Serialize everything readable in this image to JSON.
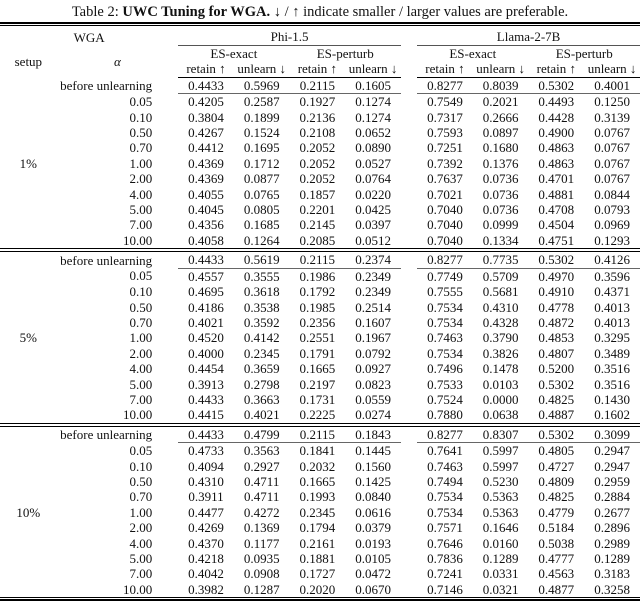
{
  "caption": {
    "prefix": "Table 2: ",
    "bold": "UWC Tuning for WGA.",
    "suffix": " ↓ / ↑ indicate smaller / larger values are preferable."
  },
  "header": {
    "wga": "WGA",
    "setup": "setup",
    "alpha": "α",
    "model_left": "Phi-1.5",
    "model_right": "Llama-2-7B",
    "es_exact": "ES-exact",
    "es_perturb": "ES-perturb",
    "retain": "retain ↑",
    "unlearn": "unlearn ↓"
  },
  "table": {
    "before_label": "before unlearning",
    "setup_row_label": "1.00",
    "blocks": [
      {
        "setup": "1%",
        "rows": [
          {
            "label": "before unlearning",
            "values": [
              "0.4433",
              "0.5969",
              "0.2115",
              "0.1605",
              "0.8277",
              "0.8039",
              "0.5302",
              "0.4001"
            ]
          },
          {
            "label": "0.05",
            "values": [
              "0.4205",
              "0.2587",
              "0.1927",
              "0.1274",
              "0.7549",
              "0.2021",
              "0.4493",
              "0.1250"
            ]
          },
          {
            "label": "0.10",
            "values": [
              "0.3804",
              "0.1899",
              "0.2136",
              "0.1274",
              "0.7317",
              "0.2666",
              "0.4428",
              "0.3139"
            ]
          },
          {
            "label": "0.50",
            "values": [
              "0.4267",
              "0.1524",
              "0.2108",
              "0.0652",
              "0.7593",
              "0.0897",
              "0.4900",
              "0.0767"
            ]
          },
          {
            "label": "0.70",
            "values": [
              "0.4412",
              "0.1695",
              "0.2052",
              "0.0890",
              "0.7251",
              "0.1680",
              "0.4863",
              "0.0767"
            ]
          },
          {
            "label": "1.00",
            "values": [
              "0.4369",
              "0.1712",
              "0.2052",
              "0.0527",
              "0.7392",
              "0.1376",
              "0.4863",
              "0.0767"
            ]
          },
          {
            "label": "2.00",
            "values": [
              "0.4369",
              "0.0877",
              "0.2052",
              "0.0764",
              "0.7637",
              "0.0736",
              "0.4701",
              "0.0767"
            ]
          },
          {
            "label": "4.00",
            "values": [
              "0.4055",
              "0.0765",
              "0.1857",
              "0.0220",
              "0.7021",
              "0.0736",
              "0.4881",
              "0.0844"
            ]
          },
          {
            "label": "5.00",
            "values": [
              "0.4045",
              "0.0805",
              "0.2201",
              "0.0425",
              "0.7040",
              "0.0736",
              "0.4708",
              "0.0793"
            ]
          },
          {
            "label": "7.00",
            "values": [
              "0.4356",
              "0.1685",
              "0.2145",
              "0.0397",
              "0.7040",
              "0.0999",
              "0.4504",
              "0.0969"
            ]
          },
          {
            "label": "10.00",
            "values": [
              "0.4058",
              "0.1264",
              "0.2085",
              "0.0512",
              "0.7040",
              "0.1334",
              "0.4751",
              "0.1293"
            ]
          }
        ]
      },
      {
        "setup": "5%",
        "rows": [
          {
            "label": "before unlearning",
            "values": [
              "0.4433",
              "0.5619",
              "0.2115",
              "0.2374",
              "0.8277",
              "0.7735",
              "0.5302",
              "0.4126"
            ]
          },
          {
            "label": "0.05",
            "values": [
              "0.4557",
              "0.3555",
              "0.1986",
              "0.2349",
              "0.7749",
              "0.5709",
              "0.4970",
              "0.3596"
            ]
          },
          {
            "label": "0.10",
            "values": [
              "0.4695",
              "0.3618",
              "0.1792",
              "0.2349",
              "0.7555",
              "0.5681",
              "0.4910",
              "0.4371"
            ]
          },
          {
            "label": "0.50",
            "values": [
              "0.4186",
              "0.3538",
              "0.1985",
              "0.2514",
              "0.7534",
              "0.4310",
              "0.4778",
              "0.4013"
            ]
          },
          {
            "label": "0.70",
            "values": [
              "0.4021",
              "0.3592",
              "0.2356",
              "0.1607",
              "0.7534",
              "0.4328",
              "0.4872",
              "0.4013"
            ]
          },
          {
            "label": "1.00",
            "values": [
              "0.4520",
              "0.4142",
              "0.2551",
              "0.1967",
              "0.7463",
              "0.3790",
              "0.4853",
              "0.3295"
            ]
          },
          {
            "label": "2.00",
            "values": [
              "0.4000",
              "0.2345",
              "0.1791",
              "0.0792",
              "0.7534",
              "0.3826",
              "0.4807",
              "0.3489"
            ]
          },
          {
            "label": "4.00",
            "values": [
              "0.4454",
              "0.3659",
              "0.1665",
              "0.0927",
              "0.7496",
              "0.1478",
              "0.5200",
              "0.3516"
            ]
          },
          {
            "label": "5.00",
            "values": [
              "0.3913",
              "0.2798",
              "0.2197",
              "0.0823",
              "0.7533",
              "0.0103",
              "0.5302",
              "0.3516"
            ]
          },
          {
            "label": "7.00",
            "values": [
              "0.4433",
              "0.3663",
              "0.1731",
              "0.0559",
              "0.7524",
              "0.0000",
              "0.4825",
              "0.1430"
            ]
          },
          {
            "label": "10.00",
            "values": [
              "0.4415",
              "0.4021",
              "0.2225",
              "0.0274",
              "0.7880",
              "0.0638",
              "0.4887",
              "0.1602"
            ]
          }
        ]
      },
      {
        "setup": "10%",
        "rows": [
          {
            "label": "before unlearning",
            "values": [
              "0.4433",
              "0.4799",
              "0.2115",
              "0.1843",
              "0.8277",
              "0.8307",
              "0.5302",
              "0.3099"
            ]
          },
          {
            "label": "0.05",
            "values": [
              "0.4733",
              "0.3563",
              "0.1841",
              "0.1445",
              "0.7641",
              "0.5997",
              "0.4805",
              "0.2947"
            ]
          },
          {
            "label": "0.10",
            "values": [
              "0.4094",
              "0.2927",
              "0.2032",
              "0.1560",
              "0.7463",
              "0.5997",
              "0.4727",
              "0.2947"
            ]
          },
          {
            "label": "0.50",
            "values": [
              "0.4310",
              "0.4711",
              "0.1665",
              "0.1425",
              "0.7494",
              "0.5230",
              "0.4809",
              "0.2959"
            ]
          },
          {
            "label": "0.70",
            "values": [
              "0.3911",
              "0.4711",
              "0.1993",
              "0.0840",
              "0.7534",
              "0.5363",
              "0.4825",
              "0.2884"
            ]
          },
          {
            "label": "1.00",
            "values": [
              "0.4477",
              "0.4272",
              "0.2345",
              "0.0616",
              "0.7534",
              "0.5363",
              "0.4779",
              "0.2677"
            ]
          },
          {
            "label": "2.00",
            "values": [
              "0.4269",
              "0.1369",
              "0.1794",
              "0.0379",
              "0.7571",
              "0.1646",
              "0.5184",
              "0.2896"
            ]
          },
          {
            "label": "4.00",
            "values": [
              "0.4370",
              "0.1177",
              "0.2161",
              "0.0193",
              "0.7646",
              "0.0160",
              "0.5038",
              "0.2989"
            ]
          },
          {
            "label": "5.00",
            "values": [
              "0.4218",
              "0.0935",
              "0.1881",
              "0.0105",
              "0.7836",
              "0.1289",
              "0.4777",
              "0.1289"
            ]
          },
          {
            "label": "7.00",
            "values": [
              "0.4042",
              "0.0908",
              "0.1727",
              "0.0472",
              "0.7241",
              "0.0331",
              "0.4563",
              "0.3183"
            ]
          },
          {
            "label": "10.00",
            "values": [
              "0.3982",
              "0.1287",
              "0.2020",
              "0.0670",
              "0.7146",
              "0.0321",
              "0.4877",
              "0.3258"
            ]
          }
        ]
      }
    ]
  }
}
